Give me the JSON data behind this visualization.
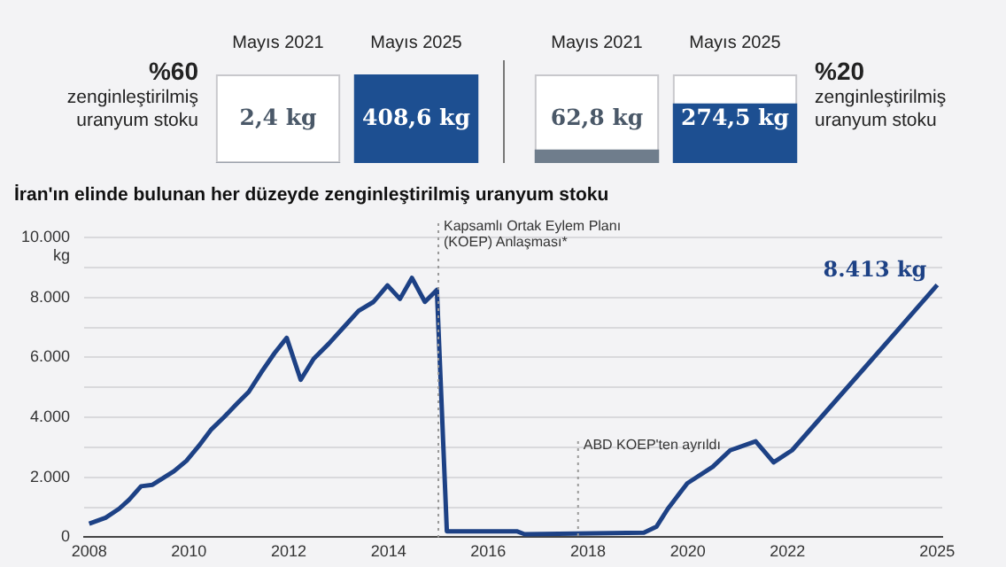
{
  "chart_data": [
    {
      "type": "bar",
      "title": "%60 zenginleştirilmiş uranyum stoku",
      "categories": [
        "Mayıs 2021",
        "Mayıs 2025"
      ],
      "values": [
        2.4,
        408.6
      ],
      "colors": [
        "#6f7d8c",
        "#1d4f91"
      ],
      "value_labels": [
        "2,4 kg",
        "408,6 kg"
      ]
    },
    {
      "type": "bar",
      "title": "%20 zenginleştirilmiş uranyum stoku",
      "categories": [
        "Mayıs 2021",
        "Mayıs 2025"
      ],
      "values": [
        62.8,
        274.5
      ],
      "colors": [
        "#6f7d8c",
        "#1d4f91"
      ],
      "value_labels": [
        "62,8 kg",
        "274,5 kg"
      ]
    },
    {
      "type": "line",
      "title": "İran'ın elinde bulunan her düzeyde zenginleştirilmiş uranyum stoku",
      "ylabel": "kg",
      "marker": "none",
      "grid": "y",
      "legend": false,
      "xlim": [
        2007.9,
        2025.1
      ],
      "xticks": [
        2008,
        2010,
        2012,
        2014,
        2016,
        2018,
        2020,
        2022,
        2025
      ],
      "ylim": [
        0,
        10000
      ],
      "yticks": [
        0,
        {
          "value": 1000,
          "label": null
        },
        {
          "value": 2000,
          "label": "2.000"
        },
        {
          "value": 3000,
          "label": null
        },
        {
          "value": 4000,
          "label": "4.000"
        },
        {
          "value": 5000,
          "label": null
        },
        {
          "value": 6000,
          "label": "6.000"
        },
        {
          "value": 7000,
          "label": null
        },
        {
          "value": 8000,
          "label": "8.000"
        },
        {
          "value": 9000,
          "label": null
        },
        {
          "value": 10000,
          "label": "10.000"
        }
      ],
      "ref_lines": [
        {
          "axis": "x",
          "value": 2015.0,
          "label": "Kapsamlı Ortak Eylem Planı (KOEP) Anlaşması*",
          "line_style": "dotted",
          "color": "#999999"
        },
        {
          "axis": "x",
          "value": 2017.8,
          "label": "ABD KOEP'ten ayrıldı",
          "line_style": "dotted",
          "color": "#999999"
        }
      ],
      "annotations": [
        {
          "text": "8.413 kg",
          "x": 2025.0,
          "y": 8413
        }
      ],
      "series": [
        {
          "color": "#1d4185",
          "x": [
            2008.0,
            2008.33,
            2008.6,
            2008.8,
            2009.04,
            2009.27,
            2009.7,
            2009.95,
            2010.2,
            2010.45,
            2010.7,
            2010.96,
            2011.2,
            2011.45,
            2011.72,
            2011.96,
            2012.24,
            2012.5,
            2012.8,
            2013.1,
            2013.4,
            2013.7,
            2013.98,
            2014.23,
            2014.47,
            2014.73,
            2014.97,
            2015.17,
            2016.57,
            2016.73,
            2019.12,
            2019.37,
            2019.6,
            2019.99,
            2020.5,
            2020.85,
            2021.36,
            2021.72,
            2022.09,
            2023.57,
            2025.0
          ],
          "values": [
            450,
            650,
            950,
            1250,
            1700,
            1750,
            2200,
            2550,
            3050,
            3600,
            4000,
            4450,
            4850,
            5500,
            6150,
            6650,
            5250,
            5950,
            6450,
            7000,
            7550,
            7850,
            8400,
            7950,
            8650,
            7850,
            8250,
            200,
            200,
            100,
            150,
            350,
            950,
            1800,
            2350,
            2900,
            3200,
            2500,
            2900,
            5700,
            8413
          ]
        }
      ]
    }
  ]
}
